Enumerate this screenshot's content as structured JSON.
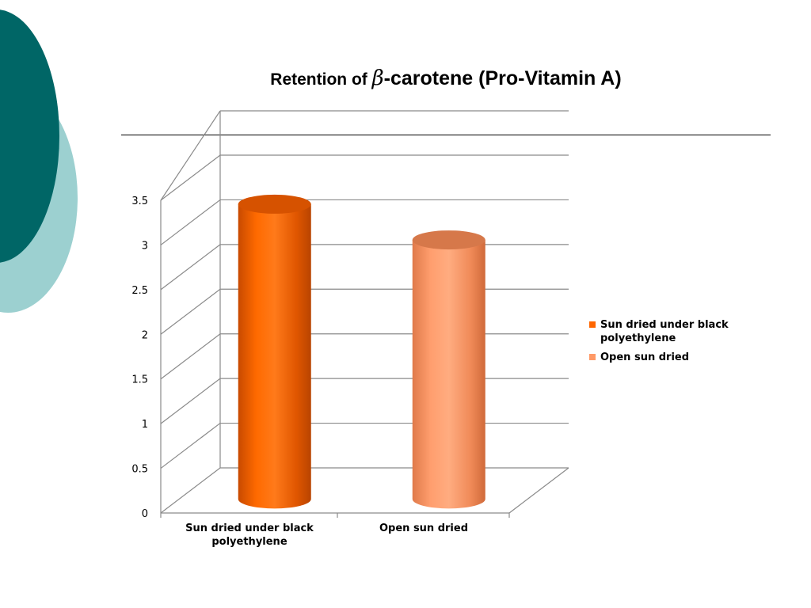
{
  "slide": {
    "title_prefix": "Retention of ",
    "title_symbol": "β",
    "title_suffix": "-carotene (Pro-Vitamin A)"
  },
  "colors": {
    "deco_dark": "#006666",
    "deco_light": "#9cd0d0",
    "series_1": "#ff6600",
    "series_2": "#ff9966"
  },
  "chart_data": {
    "type": "bar",
    "style": "3d-cylinder",
    "categories": [
      "Sun dried under black polyethylene",
      "Open sun dried"
    ],
    "values": [
      3.3,
      2.9
    ],
    "legend": [
      "Sun dried under black polyethylene",
      "Open sun dried"
    ],
    "legend_position": "right",
    "y_ticks": [
      "0",
      "0.5",
      "1",
      "1.5",
      "2",
      "2.5",
      "3",
      "3.5"
    ],
    "ylim": [
      0,
      3.5
    ],
    "grid": true,
    "xlabel": "",
    "ylabel": ""
  }
}
